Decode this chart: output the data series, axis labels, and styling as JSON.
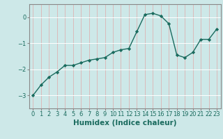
{
  "x": [
    0,
    1,
    2,
    3,
    4,
    5,
    6,
    7,
    8,
    9,
    10,
    11,
    12,
    13,
    14,
    15,
    16,
    17,
    18,
    19,
    20,
    21,
    22,
    23
  ],
  "y": [
    -3.0,
    -2.6,
    -2.3,
    -2.1,
    -1.85,
    -1.85,
    -1.75,
    -1.65,
    -1.6,
    -1.55,
    -1.35,
    -1.25,
    -1.2,
    -0.55,
    0.1,
    0.15,
    0.05,
    -0.25,
    -1.45,
    -1.55,
    -1.35,
    -0.85,
    -0.85,
    -0.45
  ],
  "line_color": "#1a6b5e",
  "marker": "D",
  "markersize": 2.2,
  "linewidth": 1.0,
  "xlabel": "Humidex (Indice chaleur)",
  "xlabel_fontsize": 7.5,
  "xlabel_fontweight": "bold",
  "ylim": [
    -3.5,
    0.5
  ],
  "xlim": [
    -0.5,
    23.5
  ],
  "yticks": [
    0,
    -1,
    -2,
    -3
  ],
  "bg_color": "#cde8e8",
  "grid_color_h": "#ffffff",
  "grid_color_v": "#dbbaba",
  "grid_linewidth": 0.7,
  "tick_fontsize": 6.0,
  "spine_color": "#888888"
}
